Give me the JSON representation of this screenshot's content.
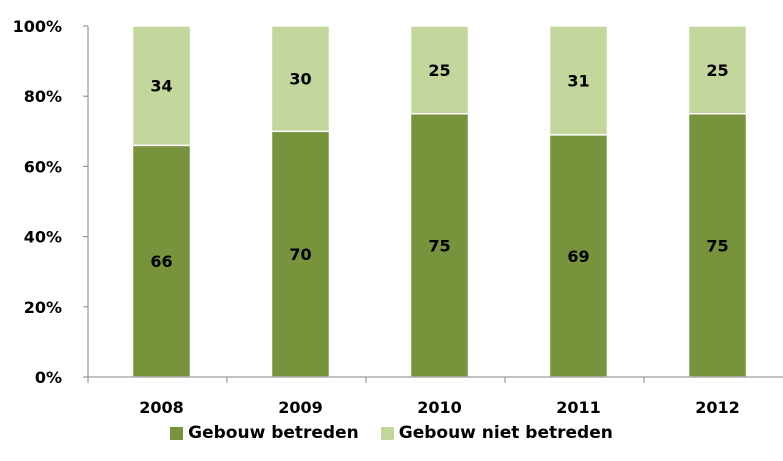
{
  "chart_data": {
    "type": "bar",
    "stacked": true,
    "percent": true,
    "categories": [
      "2008",
      "2009",
      "2010",
      "2011",
      "2012"
    ],
    "series": [
      {
        "name": "Gebouw betreden",
        "values": [
          66,
          70,
          75,
          69,
          75
        ],
        "color": "#77933c"
      },
      {
        "name": "Gebouw niet betreden",
        "values": [
          34,
          30,
          25,
          31,
          25
        ],
        "color": "#c3d69b"
      }
    ],
    "ylim": [
      0,
      100
    ],
    "yticks": [
      "0%",
      "20%",
      "40%",
      "60%",
      "80%",
      "100%"
    ],
    "grid": false,
    "legend_position": "bottom"
  }
}
